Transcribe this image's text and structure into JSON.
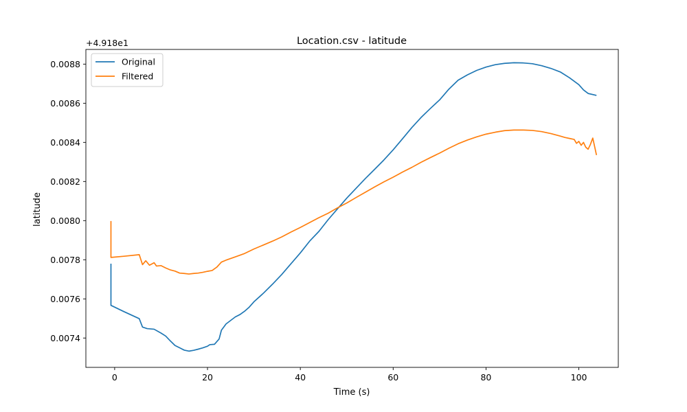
{
  "chart_data": {
    "type": "line",
    "title": "Location.csv - latitude",
    "xlabel": "Time (s)",
    "ylabel": "latitude",
    "offset_label": "+4.918e1",
    "xlim": [
      -6.2,
      108.5
    ],
    "ylim": [
      0.00725,
      0.008875
    ],
    "xticks": [
      0,
      20,
      40,
      60,
      80,
      100
    ],
    "xtick_labels": [
      "0",
      "20",
      "40",
      "60",
      "80",
      "100"
    ],
    "yticks": [
      0.0074,
      0.0076,
      0.0078,
      0.008,
      0.0082,
      0.0084,
      0.0086,
      0.0088
    ],
    "ytick_labels": [
      "0.0074",
      "0.0076",
      "0.0078",
      "0.0080",
      "0.0082",
      "0.0084",
      "0.0086",
      "0.0088"
    ],
    "grid": false,
    "legend_position": "top-left",
    "series": [
      {
        "name": "Original",
        "color": "#1f77b4",
        "points": [
          [
            -0.8,
            0.00778
          ],
          [
            -0.8,
            0.007567
          ],
          [
            2,
            0.007535
          ],
          [
            5.3,
            0.007499
          ],
          [
            6,
            0.007456
          ],
          [
            7,
            0.007448
          ],
          [
            8.5,
            0.007445
          ],
          [
            10,
            0.007425
          ],
          [
            11,
            0.00741
          ],
          [
            12,
            0.007385
          ],
          [
            13,
            0.007362
          ],
          [
            14,
            0.00735
          ],
          [
            15,
            0.007338
          ],
          [
            16,
            0.007333
          ],
          [
            17,
            0.007337
          ],
          [
            18,
            0.007343
          ],
          [
            19,
            0.00735
          ],
          [
            20,
            0.007358
          ],
          [
            20.5,
            0.007366
          ],
          [
            21.5,
            0.007368
          ],
          [
            22.5,
            0.007395
          ],
          [
            23,
            0.00744
          ],
          [
            24,
            0.007472
          ],
          [
            25,
            0.00749
          ],
          [
            26,
            0.007508
          ],
          [
            27,
            0.00752
          ],
          [
            28,
            0.007537
          ],
          [
            29,
            0.007558
          ],
          [
            30,
            0.007585
          ],
          [
            32,
            0.007628
          ],
          [
            34,
            0.007675
          ],
          [
            36,
            0.007725
          ],
          [
            38,
            0.00778
          ],
          [
            40,
            0.007835
          ],
          [
            42,
            0.007895
          ],
          [
            44,
            0.007945
          ],
          [
            46,
            0.008005
          ],
          [
            48,
            0.00806
          ],
          [
            50,
            0.008115
          ],
          [
            52,
            0.008165
          ],
          [
            54,
            0.008215
          ],
          [
            56,
            0.008262
          ],
          [
            58,
            0.00831
          ],
          [
            60,
            0.008362
          ],
          [
            62,
            0.008418
          ],
          [
            64,
            0.008475
          ],
          [
            66,
            0.008527
          ],
          [
            68,
            0.008573
          ],
          [
            70,
            0.008617
          ],
          [
            72,
            0.008672
          ],
          [
            74,
            0.008718
          ],
          [
            76,
            0.008745
          ],
          [
            78,
            0.008768
          ],
          [
            80,
            0.008785
          ],
          [
            82,
            0.008797
          ],
          [
            84,
            0.008804
          ],
          [
            86,
            0.008807
          ],
          [
            88,
            0.008806
          ],
          [
            90,
            0.008802
          ],
          [
            92,
            0.008792
          ],
          [
            94,
            0.008778
          ],
          [
            96,
            0.00876
          ],
          [
            98,
            0.00873
          ],
          [
            100,
            0.008695
          ],
          [
            101,
            0.008668
          ],
          [
            102,
            0.00865
          ],
          [
            103.8,
            0.00864
          ]
        ]
      },
      {
        "name": "Filtered",
        "color": "#ff7f0e",
        "points": [
          [
            -0.8,
            0.007998
          ],
          [
            -0.8,
            0.007812
          ],
          [
            2,
            0.007818
          ],
          [
            5.3,
            0.007826
          ],
          [
            6,
            0.007775
          ],
          [
            6.7,
            0.007795
          ],
          [
            7.5,
            0.007772
          ],
          [
            8.5,
            0.007785
          ],
          [
            9,
            0.007768
          ],
          [
            10,
            0.00777
          ],
          [
            11,
            0.007758
          ],
          [
            12,
            0.007748
          ],
          [
            13,
            0.007742
          ],
          [
            14,
            0.007732
          ],
          [
            15,
            0.00773
          ],
          [
            16,
            0.007727
          ],
          [
            17,
            0.00773
          ],
          [
            18,
            0.007732
          ],
          [
            19,
            0.007736
          ],
          [
            20,
            0.007741
          ],
          [
            21,
            0.007745
          ],
          [
            22,
            0.007762
          ],
          [
            23,
            0.007788
          ],
          [
            24,
            0.007798
          ],
          [
            26,
            0.007815
          ],
          [
            28,
            0.007832
          ],
          [
            30,
            0.007855
          ],
          [
            32,
            0.007875
          ],
          [
            34,
            0.007895
          ],
          [
            36,
            0.007917
          ],
          [
            38,
            0.007942
          ],
          [
            40,
            0.007965
          ],
          [
            42,
            0.00799
          ],
          [
            44,
            0.008015
          ],
          [
            46,
            0.008038
          ],
          [
            48,
            0.008065
          ],
          [
            50,
            0.00809
          ],
          [
            52,
            0.008118
          ],
          [
            54,
            0.008145
          ],
          [
            56,
            0.008172
          ],
          [
            58,
            0.008198
          ],
          [
            60,
            0.008222
          ],
          [
            62,
            0.008248
          ],
          [
            64,
            0.008272
          ],
          [
            66,
            0.008298
          ],
          [
            68,
            0.008322
          ],
          [
            70,
            0.008345
          ],
          [
            72,
            0.00837
          ],
          [
            74,
            0.008393
          ],
          [
            76,
            0.008412
          ],
          [
            78,
            0.008428
          ],
          [
            80,
            0.008442
          ],
          [
            82,
            0.008452
          ],
          [
            84,
            0.00846
          ],
          [
            86,
            0.008463
          ],
          [
            88,
            0.008463
          ],
          [
            90,
            0.008461
          ],
          [
            92,
            0.008455
          ],
          [
            94,
            0.008445
          ],
          [
            96,
            0.008432
          ],
          [
            97,
            0.008425
          ],
          [
            98,
            0.00842
          ],
          [
            99,
            0.008415
          ],
          [
            99.5,
            0.008395
          ],
          [
            100,
            0.008405
          ],
          [
            100.5,
            0.008385
          ],
          [
            101,
            0.0084
          ],
          [
            101.5,
            0.008375
          ],
          [
            102,
            0.008365
          ],
          [
            102.5,
            0.00839
          ],
          [
            103,
            0.008422
          ],
          [
            103.8,
            0.008335
          ]
        ]
      }
    ]
  }
}
